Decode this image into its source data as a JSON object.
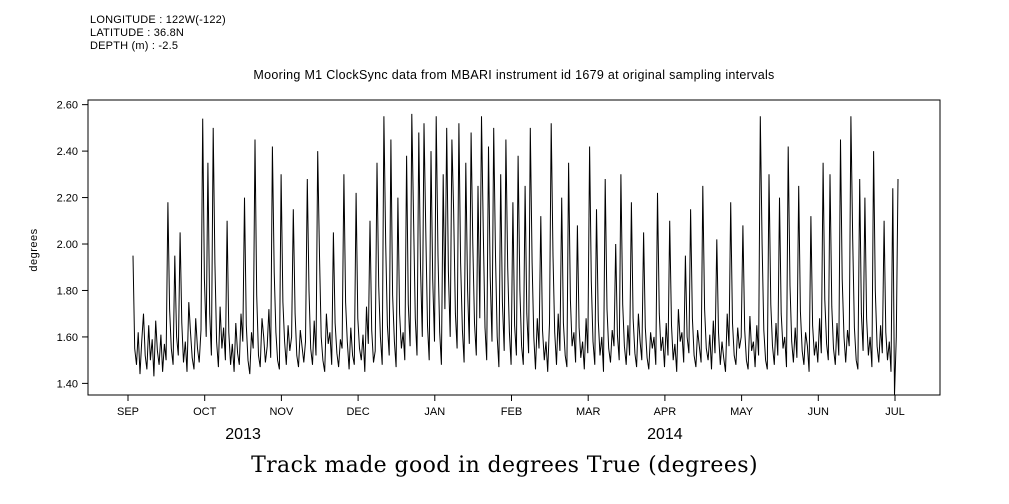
{
  "header": {
    "longitude": "LONGITUDE : 122W(-122)",
    "latitude": "LATITUDE : 36.8N",
    "depth": "DEPTH (m) : -2.5"
  },
  "title": "Mooring M1 ClockSync data from MBARI instrument id 1679 at original sampling intervals",
  "caption": "Track made good in degrees True (degrees)",
  "chart_data": {
    "type": "line",
    "title": "Mooring M1 ClockSync data from MBARI instrument id 1679 at original sampling intervals",
    "xlabel": "Track made good in degrees True (degrees)",
    "ylabel": "degrees",
    "ylim": [
      1.35,
      2.62
    ],
    "yticks": [
      1.4,
      1.6,
      1.8,
      2.0,
      2.2,
      2.4,
      2.6
    ],
    "ytick_labels": [
      "1.40",
      "1.60",
      "1.80",
      "2.00",
      "2.20",
      "2.40",
      "2.60"
    ],
    "x_months": [
      "SEP",
      "OCT",
      "NOV",
      "DEC",
      "JAN",
      "FEB",
      "MAR",
      "APR",
      "MAY",
      "JUN",
      "JUL"
    ],
    "year_labels": [
      "2013",
      "2014"
    ],
    "grid": false,
    "legend": "none",
    "line_color": "#000000",
    "values": [
      1.95,
      1.55,
      1.48,
      1.62,
      1.44,
      1.58,
      1.7,
      1.52,
      1.46,
      1.65,
      1.5,
      1.59,
      1.43,
      1.67,
      1.54,
      1.48,
      1.61,
      1.45,
      1.57,
      1.5,
      2.18,
      1.72,
      1.55,
      1.48,
      1.95,
      1.6,
      1.52,
      2.05,
      1.66,
      1.49,
      1.58,
      1.45,
      1.75,
      1.62,
      1.51,
      1.46,
      1.68,
      1.55,
      1.49,
      1.63,
      2.54,
      1.85,
      1.6,
      2.35,
      1.7,
      1.52,
      2.5,
      1.92,
      1.58,
      1.47,
      1.73,
      1.55,
      1.64,
      1.5,
      2.1,
      1.62,
      1.48,
      1.57,
      1.45,
      1.66,
      1.53,
      1.48,
      1.7,
      1.58,
      2.2,
      1.65,
      1.5,
      1.44,
      1.62,
      1.55,
      2.45,
      1.78,
      1.52,
      1.47,
      1.68,
      1.6,
      1.49,
      1.56,
      1.72,
      1.51,
      2.42,
      1.88,
      1.62,
      1.5,
      1.46,
      2.3,
      1.75,
      1.58,
      1.48,
      1.65,
      1.54,
      1.6,
      2.15,
      1.7,
      1.52,
      1.47,
      1.63,
      1.56,
      1.49,
      1.58,
      2.28,
      1.8,
      1.55,
      1.48,
      1.67,
      1.52,
      2.4,
      1.95,
      1.6,
      1.5,
      1.45,
      1.7,
      1.57,
      1.62,
      1.48,
      2.05,
      1.66,
      1.53,
      1.47,
      1.59,
      1.55,
      2.3,
      1.75,
      1.58,
      1.46,
      1.64,
      1.52,
      1.48,
      2.22,
      1.68,
      1.55,
      1.5,
      1.61,
      1.45,
      1.73,
      1.57,
      2.1,
      1.63,
      1.49,
      1.54,
      2.35,
      1.82,
      1.6,
      1.48,
      2.55,
      2.0,
      1.65,
      1.52,
      2.45,
      1.78,
      1.58,
      1.47,
      2.2,
      1.7,
      1.55,
      1.62,
      1.5,
      2.38,
      1.74,
      1.56,
      2.56,
      2.1,
      1.68,
      1.52,
      2.48,
      1.9,
      1.6,
      2.52,
      2.05,
      1.65,
      1.5,
      2.4,
      1.85,
      1.58,
      2.55,
      1.95,
      1.62,
      1.48,
      2.3,
      1.72,
      2.5,
      1.88,
      1.6,
      2.45,
      2.15,
      1.7,
      1.55,
      2.52,
      1.92,
      1.63,
      1.49,
      2.35,
      1.8,
      1.57,
      2.48,
      2.0,
      1.66,
      1.52,
      2.25,
      1.68,
      2.55,
      2.05,
      1.64,
      1.5,
      2.42,
      1.86,
      1.58,
      2.5,
      1.95,
      1.6,
      1.47,
      2.3,
      1.75,
      1.54,
      2.45,
      1.9,
      1.62,
      1.48,
      2.18,
      1.65,
      1.52,
      2.38,
      1.8,
      1.56,
      1.48,
      2.25,
      1.7,
      1.53,
      2.5,
      1.92,
      1.6,
      1.46,
      1.68,
      1.55,
      2.12,
      1.63,
      1.5,
      1.58,
      1.45,
      1.66,
      2.52,
      1.95,
      1.62,
      1.48,
      1.7,
      1.54,
      2.2,
      1.66,
      1.52,
      1.47,
      2.35,
      1.76,
      1.56,
      1.62,
      1.49,
      2.08,
      1.64,
      1.51,
      1.58,
      1.46,
      1.68,
      1.53,
      2.42,
      1.84,
      1.58,
      1.48,
      2.15,
      1.67,
      1.52,
      1.6,
      1.45,
      2.28,
      1.72,
      1.55,
      1.49,
      1.63,
      1.56,
      2.0,
      1.61,
      1.5,
      2.3,
      1.74,
      1.56,
      1.48,
      1.65,
      1.52,
      2.18,
      1.68,
      1.53,
      1.47,
      1.7,
      1.58,
      1.5,
      2.05,
      1.64,
      1.51,
      1.46,
      1.62,
      1.55,
      1.6,
      1.48,
      2.22,
      1.7,
      1.54,
      1.6,
      1.47,
      1.66,
      1.52,
      2.1,
      1.65,
      1.5,
      1.57,
      1.45,
      1.72,
      1.58,
      1.62,
      1.49,
      1.95,
      1.6,
      1.53,
      2.15,
      1.68,
      1.52,
      1.47,
      1.63,
      1.56,
      1.49,
      2.25,
      1.72,
      1.55,
      1.5,
      1.61,
      1.46,
      1.67,
      1.53,
      2.02,
      1.62,
      1.48,
      1.58,
      1.51,
      1.45,
      1.7,
      1.56,
      2.18,
      1.66,
      1.52,
      1.48,
      1.64,
      1.55,
      1.6,
      2.08,
      1.63,
      1.5,
      1.46,
      1.69,
      1.54,
      1.58,
      1.47,
      1.65,
      1.52,
      2.55,
      2.0,
      1.63,
      1.5,
      1.46,
      2.3,
      1.74,
      1.56,
      1.48,
      1.66,
      1.52,
      2.2,
      1.7,
      1.55,
      1.6,
      1.47,
      2.42,
      1.82,
      1.58,
      1.49,
      1.64,
      1.51,
      2.25,
      1.71,
      1.54,
      1.48,
      1.62,
      1.56,
      1.45,
      2.12,
      1.65,
      1.52,
      1.58,
      1.49,
      1.68,
      1.53,
      2.35,
      1.76,
      1.57,
      1.5,
      2.3,
      1.73,
      1.55,
      1.48,
      1.66,
      1.52,
      2.45,
      1.85,
      1.6,
      1.49,
      1.63,
      1.56,
      2.55,
      2.02,
      1.64,
      1.5,
      1.46,
      2.28,
      1.7,
      1.54,
      2.2,
      1.68,
      1.52,
      1.6,
      1.47,
      2.4,
      1.8,
      1.56,
      1.49,
      1.65,
      1.53,
      2.1,
      1.62,
      1.5,
      1.58,
      1.45,
      2.24,
      1.35,
      1.6,
      2.28
    ]
  }
}
